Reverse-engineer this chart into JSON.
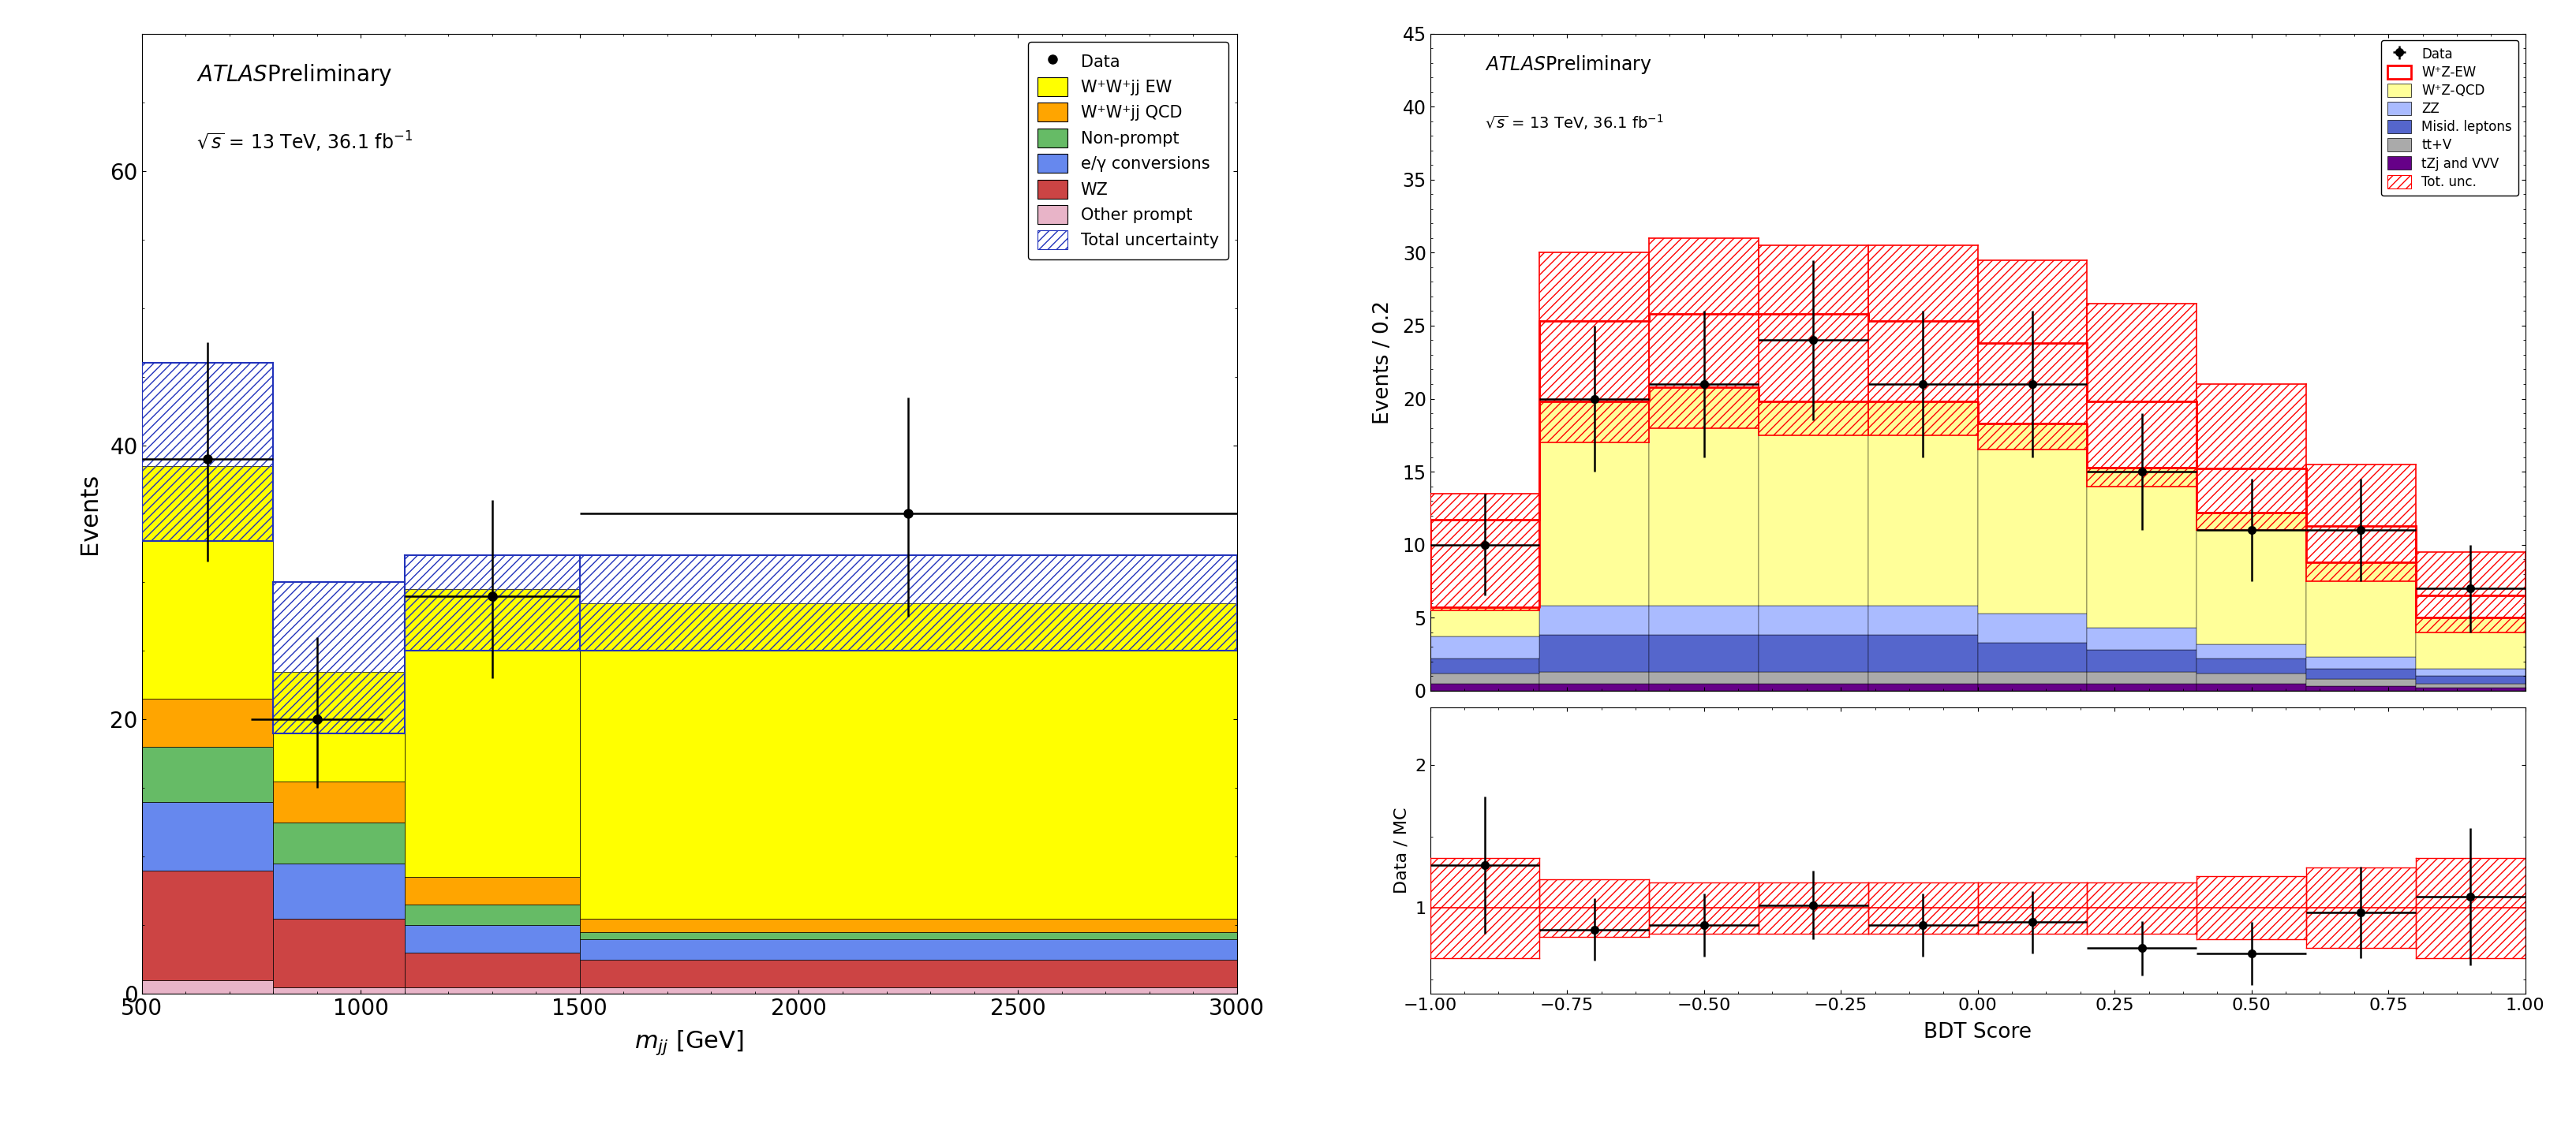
{
  "left": {
    "xlabel": "m_{jj} [GeV]",
    "ylabel": "Events",
    "xlim": [
      500,
      3000
    ],
    "ylim": [
      0,
      70
    ],
    "yticks": [
      0,
      20,
      40,
      60
    ],
    "xticks": [
      500,
      1000,
      1500,
      2000,
      2500,
      3000
    ],
    "bins": [
      500,
      800,
      1100,
      1500,
      3000
    ],
    "stack_data": {
      "OtherPrompt": [
        1.0,
        0.5,
        0.5,
        0.5
      ],
      "WZ": [
        8.0,
        5.0,
        2.5,
        2.0
      ],
      "EGconv": [
        5.0,
        4.0,
        2.0,
        1.5
      ],
      "NonPrompt": [
        4.0,
        3.0,
        1.5,
        0.5
      ],
      "WW_QCD": [
        3.5,
        3.0,
        2.0,
        1.0
      ],
      "WW_EW": [
        17.0,
        8.0,
        21.0,
        23.0
      ]
    },
    "stack_colors": [
      "#E8B4C8",
      "#CC4444",
      "#6688EE",
      "#66BB66",
      "#FFA500",
      "#FFFF00"
    ],
    "stack_labels": [
      "Other prompt",
      "WZ",
      "e/γ conversions",
      "Non-prompt",
      "W⁺W⁺jj QCD",
      "W⁺W⁺jj EW"
    ],
    "unc_lo": [
      33,
      19,
      25,
      25
    ],
    "unc_hi": [
      46,
      30,
      32,
      32
    ],
    "data_x": [
      650,
      900,
      1300,
      2250
    ],
    "data_y": [
      39,
      20,
      29,
      35
    ],
    "data_xerr": [
      150,
      150,
      200,
      750
    ],
    "data_yerr_lo": [
      7.5,
      5.0,
      6.0,
      7.5
    ],
    "data_yerr_hi": [
      8.5,
      6.0,
      7.0,
      8.5
    ]
  },
  "right_main": {
    "xlabel": "BDT Score",
    "ylabel": "Events / 0.2",
    "xlim": [
      -1,
      1
    ],
    "ylim": [
      0,
      45
    ],
    "yticks": [
      0,
      5,
      10,
      15,
      20,
      25,
      30,
      35,
      40,
      45
    ],
    "bins": [
      -1.0,
      -0.8,
      -0.6,
      -0.4,
      -0.2,
      0.0,
      0.2,
      0.4,
      0.6,
      0.8,
      1.0
    ],
    "stack_data": {
      "tZjVVV": [
        0.5,
        0.5,
        0.5,
        0.5,
        0.5,
        0.5,
        0.5,
        0.5,
        0.3,
        0.2
      ],
      "ttV": [
        0.7,
        0.8,
        0.8,
        0.8,
        0.8,
        0.8,
        0.8,
        0.7,
        0.5,
        0.3
      ],
      "Mislep": [
        1.0,
        2.5,
        2.5,
        2.5,
        2.5,
        2.0,
        1.5,
        1.0,
        0.7,
        0.5
      ],
      "ZZ": [
        1.5,
        2.0,
        2.0,
        2.0,
        2.0,
        2.0,
        1.5,
        1.0,
        0.8,
        0.5
      ],
      "WZ_QCD": [
        2.0,
        14.0,
        15.0,
        14.0,
        14.0,
        13.0,
        11.0,
        9.0,
        6.5,
        3.5
      ]
    },
    "stack_colors": [
      "#660088",
      "#AAAAAA",
      "#5566CC",
      "#AABBFF",
      "#FFFF99"
    ],
    "stack_labels": [
      "tZj and VVV",
      "tt+V",
      "Misid. leptons",
      "ZZ",
      "W⁺Z-QCD"
    ],
    "WZ_EW": [
      6.0,
      5.5,
      5.0,
      6.0,
      5.5,
      5.5,
      4.5,
      3.0,
      2.5,
      1.5
    ],
    "WZ_EW_color": "#FF0000",
    "WZ_EW_label": "W⁺Z-EW",
    "unc_lo": [
      5.5,
      17.0,
      18.0,
      17.5,
      17.5,
      16.5,
      14.0,
      11.0,
      7.5,
      4.0
    ],
    "unc_hi": [
      13.5,
      30.0,
      31.0,
      30.5,
      30.5,
      29.5,
      26.5,
      21.0,
      15.5,
      9.5
    ],
    "data_x": [
      -0.9,
      -0.7,
      -0.5,
      -0.3,
      -0.1,
      0.1,
      0.3,
      0.5,
      0.7,
      0.9
    ],
    "data_y": [
      10,
      20,
      21,
      24,
      21,
      21,
      15,
      11,
      11,
      7
    ],
    "data_xerr": [
      0.1,
      0.1,
      0.1,
      0.1,
      0.1,
      0.1,
      0.1,
      0.1,
      0.1,
      0.1
    ],
    "data_yerr": [
      3.5,
      5.0,
      5.0,
      5.5,
      5.0,
      5.0,
      4.0,
      3.5,
      3.5,
      3.0
    ]
  },
  "right_ratio": {
    "ylabel": "Data / MC",
    "xlim": [
      -1,
      1
    ],
    "ylim": [
      0.4,
      2.4
    ],
    "yticks": [
      1,
      2
    ],
    "unc_lo": [
      0.65,
      0.8,
      0.82,
      0.82,
      0.82,
      0.82,
      0.82,
      0.78,
      0.72,
      0.65
    ],
    "unc_hi": [
      1.35,
      1.2,
      1.18,
      1.18,
      1.18,
      1.18,
      1.18,
      1.22,
      1.28,
      1.35
    ],
    "data_x": [
      -0.9,
      -0.7,
      -0.5,
      -0.3,
      -0.1,
      0.1,
      0.3,
      0.5,
      0.7,
      0.9
    ],
    "data_xerr": [
      0.1,
      0.1,
      0.1,
      0.1,
      0.1,
      0.1,
      0.1,
      0.1,
      0.1,
      0.1
    ],
    "data_y": [
      1.3,
      0.85,
      0.88,
      1.02,
      0.88,
      0.9,
      0.72,
      0.68,
      0.97,
      1.08
    ],
    "data_yerr": [
      0.48,
      0.22,
      0.22,
      0.24,
      0.22,
      0.22,
      0.19,
      0.22,
      0.32,
      0.48
    ]
  }
}
